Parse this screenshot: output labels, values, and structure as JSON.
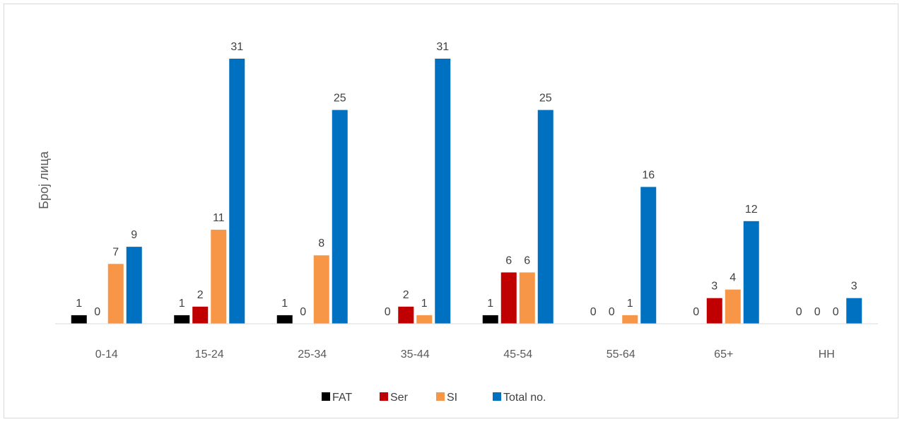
{
  "chart_data": {
    "type": "bar",
    "ylabel": "Број лица",
    "xlabel": "",
    "title": "",
    "categories": [
      "0-14",
      "15-24",
      "25-34",
      "35-44",
      "45-54",
      "55-64",
      "65+",
      "НН"
    ],
    "series": [
      {
        "name": "FAT",
        "color": "#000000",
        "values": [
          1,
          1,
          1,
          0,
          1,
          0,
          0,
          0
        ]
      },
      {
        "name": "Ser",
        "color": "#c00000",
        "values": [
          0,
          2,
          0,
          2,
          6,
          0,
          3,
          0
        ]
      },
      {
        "name": "SI",
        "color": "#f79646",
        "values": [
          7,
          11,
          8,
          1,
          6,
          1,
          4,
          0
        ]
      },
      {
        "name": "Total no.",
        "color": "#0070c0",
        "values": [
          9,
          31,
          25,
          31,
          25,
          16,
          12,
          3
        ]
      }
    ],
    "ylim": [
      0,
      31
    ],
    "grid": false,
    "data_labels": true,
    "legend_position": "bottom"
  }
}
